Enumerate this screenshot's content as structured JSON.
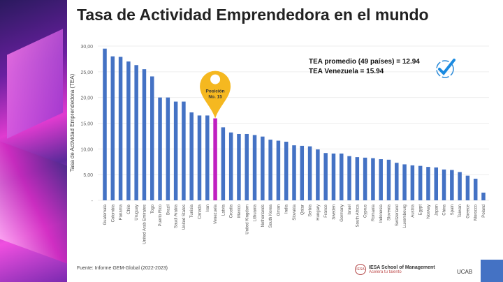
{
  "title": "Tasa de Actividad Emprendedora en el mundo",
  "source": "Fuente: Informe GEM-Global (2022-2023)",
  "info": {
    "line1": "TEA promedio (49 países) = 12.94",
    "line2": "TEA Venezuela = 15.94"
  },
  "marker": {
    "line1": "Posición",
    "line2": "No. 15",
    "color": "#f5b820"
  },
  "logo": {
    "name": "IESA School of Management",
    "tagline": "Acelera tu talento",
    "ucab": "UCAB"
  },
  "chart_data": {
    "type": "bar",
    "title": "",
    "xlabel": "",
    "ylabel": "Tasa de Actividad Emprendedora (TEA)",
    "ylim": [
      0,
      30
    ],
    "yticks": [
      "-",
      "5,00",
      "10,00",
      "15,00",
      "20,00",
      "25,00",
      "30,00"
    ],
    "grid": true,
    "bar_color": "#4472c4",
    "highlight_color": "#c020c0",
    "highlight_index": 14,
    "categories": [
      "Guatemala",
      "Colombia",
      "Panama",
      "Chile",
      "Uruguay",
      "United Arab Emirates",
      "Togo",
      "Puerto Rico",
      "Brazil",
      "Saudi Arabia",
      "United States",
      "Tunisia",
      "Canada",
      "Iran",
      "Venezuela",
      "Latvia",
      "Croatia",
      "Mexico",
      "United Kingdom",
      "Lithuania",
      "Netherlands",
      "South Korea",
      "Oman",
      "India",
      "Slovakia",
      "Qatar",
      "Serbia",
      "Hungary",
      "France",
      "Sweden",
      "Germany",
      "Israel",
      "South Africa",
      "Cyprus",
      "Romania",
      "Indonesia",
      "Slovenia",
      "Switzerland",
      "Luxembourg",
      "Austria",
      "Egypt",
      "Norway",
      "Japan",
      "China",
      "Spain",
      "Taiwan",
      "Greece",
      "Morocco",
      "Poland"
    ],
    "values": [
      29.5,
      28.0,
      27.9,
      27.0,
      26.3,
      25.5,
      24.1,
      20.0,
      20.0,
      19.2,
      19.2,
      17.1,
      16.5,
      16.5,
      15.94,
      14.2,
      13.2,
      12.9,
      12.9,
      12.7,
      12.4,
      11.8,
      11.6,
      11.4,
      10.7,
      10.6,
      10.5,
      9.9,
      9.2,
      9.1,
      9.1,
      8.6,
      8.4,
      8.3,
      8.2,
      8.0,
      7.9,
      7.3,
      7.0,
      6.8,
      6.7,
      6.5,
      6.4,
      6.0,
      5.9,
      5.5,
      4.8,
      4.2,
      1.5
    ]
  }
}
